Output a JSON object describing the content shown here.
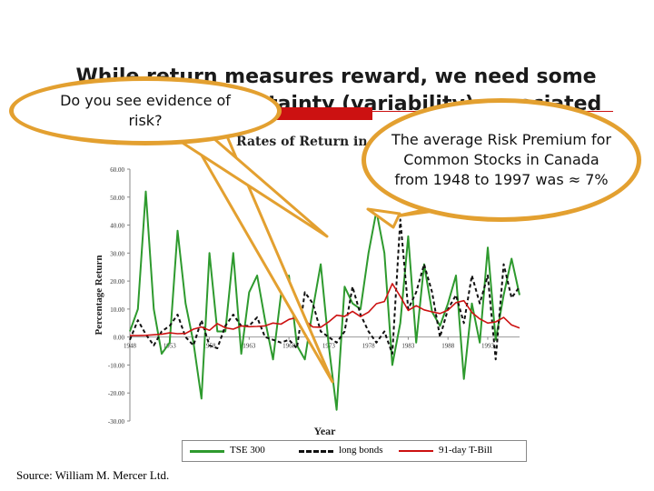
{
  "slide": {
    "title_line1": "While return measures reward, we need some",
    "title_line2": "measure of uncertainty (variability) associated",
    "source": "Source: William M. Mercer Ltd."
  },
  "callouts": {
    "left": "Do you see evidence of risk?",
    "right": "The average Risk Premium for Common Stocks in Canada from 1948 to 1997 was ≈ 7%"
  },
  "chart_data": {
    "type": "line",
    "title": "Rates of Return in Canada",
    "xlabel": "Year",
    "ylabel": "Percentage Return",
    "x": [
      1948,
      1949,
      1950,
      1951,
      1952,
      1953,
      1954,
      1955,
      1956,
      1957,
      1958,
      1959,
      1960,
      1961,
      1962,
      1963,
      1964,
      1965,
      1966,
      1967,
      1968,
      1969,
      1970,
      1971,
      1972,
      1973,
      1974,
      1975,
      1976,
      1977,
      1978,
      1979,
      1980,
      1981,
      1982,
      1983,
      1984,
      1985,
      1986,
      1987,
      1988,
      1989,
      1990,
      1991,
      1992,
      1993,
      1994,
      1995,
      1996,
      1997
    ],
    "xticks": [
      "1948",
      "1953",
      "1958",
      "1963",
      "1968",
      "1973",
      "1978",
      "1983",
      "1988",
      "1993"
    ],
    "yticks": [
      "60.00",
      "50.00",
      "40.00",
      "30.00",
      "20.00",
      "10.00",
      "0.00",
      "-10.00",
      "-20.00",
      "-30.00"
    ],
    "ylim": [
      -30,
      60
    ],
    "series": [
      {
        "name": "TSE 300",
        "color": "#2e9a2e",
        "style": "solid",
        "values": [
          2,
          10,
          52,
          10,
          -6,
          -2,
          38,
          12,
          -2,
          -22,
          30,
          2,
          2,
          30,
          -6,
          16,
          22,
          6,
          -8,
          15,
          22,
          -3,
          -8,
          10,
          26,
          -3,
          -26,
          18,
          12,
          10,
          30,
          45,
          30,
          -10,
          5,
          36,
          -2,
          26,
          9,
          4,
          12,
          22,
          -15,
          12,
          -2,
          32,
          -1,
          15,
          28,
          15
        ]
      },
      {
        "name": "long bonds",
        "color": "#111111",
        "style": "dashed",
        "values": [
          -1,
          6,
          1,
          -3,
          2,
          4,
          8,
          0,
          -3,
          6,
          -3,
          -4,
          4,
          8,
          4,
          4,
          7,
          0,
          -1,
          -2,
          -1,
          -4,
          16,
          12,
          2,
          0,
          -2,
          2,
          18,
          8,
          2,
          -2,
          2,
          -6,
          42,
          10,
          16,
          26,
          16,
          0,
          10,
          15,
          5,
          22,
          12,
          22,
          -8,
          26,
          14,
          18
        ]
      },
      {
        "name": "91-day T-Bill",
        "color": "#cc1111",
        "style": "solid",
        "values": [
          0.5,
          0.5,
          0.6,
          0.8,
          1,
          1.5,
          1.2,
          1.3,
          2.8,
          3.6,
          2.4,
          4.8,
          3.3,
          2.8,
          4,
          3.7,
          3.8,
          4,
          5,
          4.6,
          6.3,
          7,
          6,
          3.6,
          3.5,
          5.4,
          7.8,
          7.4,
          9.2,
          7.3,
          8.9,
          11.9,
          12.7,
          19.1,
          14.5,
          9.5,
          11.2,
          9.7,
          9,
          8.4,
          9.6,
          12.3,
          13,
          8.8,
          6.5,
          5,
          5.4,
          7,
          4.3,
          3.2
        ]
      }
    ],
    "grid": false
  }
}
